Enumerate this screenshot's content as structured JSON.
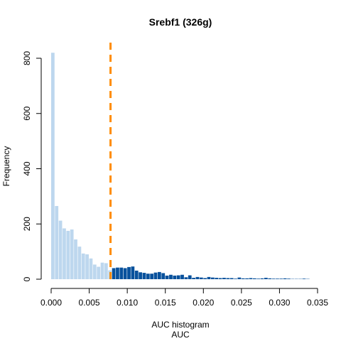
{
  "chart_data": {
    "type": "bar",
    "title": "Srebf1 (326g)",
    "xlabel_line1": "AUC histogram",
    "xlabel_line2": "AUC",
    "ylabel": "Frequency",
    "xlim": [
      0,
      0.035
    ],
    "ylim": [
      0,
      800
    ],
    "x_ticks": [
      {
        "value": 0.0,
        "label": "0.000"
      },
      {
        "value": 0.005,
        "label": "0.005"
      },
      {
        "value": 0.01,
        "label": "0.010"
      },
      {
        "value": 0.015,
        "label": "0.015"
      },
      {
        "value": 0.02,
        "label": "0.020"
      },
      {
        "value": 0.025,
        "label": "0.025"
      },
      {
        "value": 0.03,
        "label": "0.030"
      },
      {
        "value": 0.035,
        "label": "0.035"
      }
    ],
    "y_ticks": [
      {
        "value": 0,
        "label": "0"
      },
      {
        "value": 200,
        "label": "200"
      },
      {
        "value": 400,
        "label": "400"
      },
      {
        "value": 600,
        "label": "600"
      },
      {
        "value": 800,
        "label": "800"
      }
    ],
    "bin_width": 0.0005,
    "bin_start": 0.0,
    "counts": [
      820,
      265,
      212,
      184,
      175,
      180,
      144,
      118,
      93,
      90,
      75,
      53,
      45,
      60,
      58,
      32,
      40,
      42,
      42,
      40,
      44,
      46,
      31,
      25,
      23,
      20,
      20,
      24,
      26,
      22,
      13,
      16,
      13,
      14,
      16,
      7,
      14,
      5,
      8,
      6,
      4,
      8,
      6,
      5,
      4,
      5,
      4,
      4,
      2,
      6,
      3,
      3,
      4,
      3,
      2,
      3,
      5,
      3,
      2,
      2,
      2,
      3,
      2,
      1,
      1,
      1,
      2,
      1
    ],
    "threshold": 0.0078,
    "colors": {
      "below_threshold": "#bdd7ee",
      "above_threshold": "#08519c",
      "threshold_line": "#ff8c00"
    }
  }
}
